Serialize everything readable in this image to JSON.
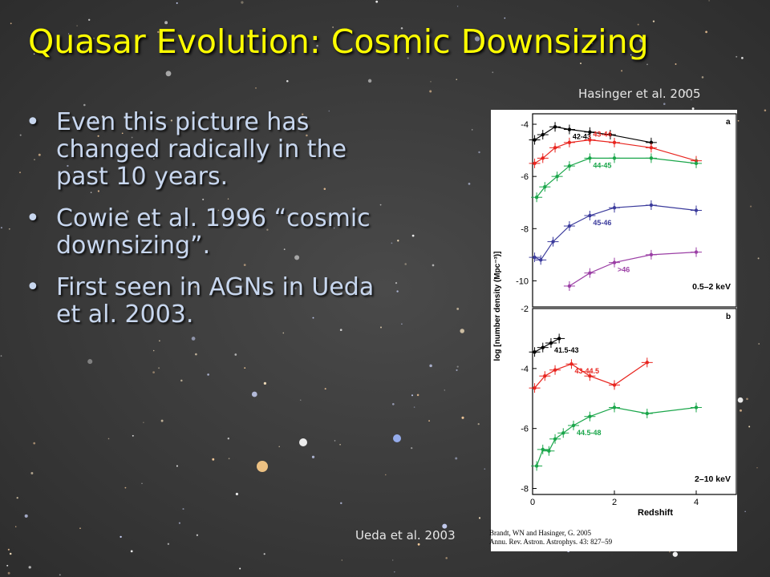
{
  "slide": {
    "title": "Quasar Evolution: Cosmic Downsizing",
    "bullets": [
      "Even this picture has changed radically in the past 10 years.",
      "Cowie et al. 1996 “cosmic downsizing”.",
      "First seen in AGNs in Ueda et al. 2003."
    ],
    "bullet_symbol": "•",
    "credit_top": "Hasinger et al. 2005",
    "credit_bottom": "Ueda et al. 2003",
    "colors": {
      "title": "#ffff00",
      "bullet_text": "#c8d7ef",
      "background": "#3d3d3d"
    }
  },
  "figure": {
    "citation_line1": "Brandt, WN and Hasinger, G. 2005",
    "citation_line2": "Annu. Rev. Astron. Astrophys. 43: 827–59"
  },
  "chart_data": [
    {
      "type": "line",
      "panel": "a",
      "band": "0.5–2 keV",
      "ylabel": "log [number density (Mpc⁻³)]",
      "xlim": [
        0,
        5
      ],
      "ylim": [
        -11,
        -3.6
      ],
      "yticks": [
        -4,
        -6,
        -8,
        -10
      ],
      "series": [
        {
          "name": "42-43",
          "color": "#000000",
          "x": [
            0.05,
            0.25,
            0.55,
            0.9,
            1.4,
            1.9,
            2.9
          ],
          "y": [
            -4.6,
            -4.4,
            -4.1,
            -4.2,
            -4.3,
            -4.4,
            -4.7
          ]
        },
        {
          "name": "43-44",
          "color": "#e8251f",
          "x": [
            0.05,
            0.25,
            0.55,
            0.9,
            1.4,
            2.0,
            2.9,
            4.0
          ],
          "y": [
            -5.5,
            -5.3,
            -4.9,
            -4.7,
            -4.6,
            -4.7,
            -4.9,
            -5.4
          ]
        },
        {
          "name": "44-45",
          "color": "#1aa64a",
          "x": [
            0.1,
            0.3,
            0.6,
            0.9,
            1.4,
            2.0,
            2.9,
            4.0
          ],
          "y": [
            -6.8,
            -6.4,
            -6.0,
            -5.6,
            -5.3,
            -5.3,
            -5.3,
            -5.5
          ]
        },
        {
          "name": "45-46",
          "color": "#3b3b9c",
          "x": [
            0.05,
            0.2,
            0.5,
            0.9,
            1.4,
            2.0,
            2.9,
            4.0
          ],
          "y": [
            -9.1,
            -9.2,
            -8.5,
            -7.9,
            -7.5,
            -7.2,
            -7.1,
            -7.3
          ]
        },
        {
          "name": ">46",
          "color": "#9b3fa5",
          "x": [
            0.9,
            1.4,
            2.0,
            2.9,
            4.0
          ],
          "y": [
            -10.2,
            -9.7,
            -9.3,
            -9.0,
            -8.9
          ]
        }
      ]
    },
    {
      "type": "line",
      "panel": "b",
      "band": "2–10 keV",
      "xlabel": "Redshift",
      "ylabel": "log [number density (Mpc⁻³)]",
      "xlim": [
        0,
        5
      ],
      "ylim": [
        -8.2,
        -2
      ],
      "xticks": [
        0,
        2,
        4
      ],
      "yticks": [
        -2,
        -4,
        -6,
        -8
      ],
      "series": [
        {
          "name": "41.5-43",
          "color": "#000000",
          "x": [
            0.05,
            0.25,
            0.45,
            0.65
          ],
          "y": [
            -3.45,
            -3.3,
            -3.15,
            -3.0
          ]
        },
        {
          "name": "43-44.5",
          "color": "#e8251f",
          "x": [
            0.05,
            0.3,
            0.55,
            0.95,
            1.4,
            2.0,
            2.8
          ],
          "y": [
            -4.65,
            -4.25,
            -4.05,
            -3.85,
            -4.25,
            -4.55,
            -3.8
          ]
        },
        {
          "name": "44.5-48",
          "color": "#1aa64a",
          "x": [
            0.1,
            0.25,
            0.4,
            0.55,
            0.75,
            1.0,
            1.4,
            2.0,
            2.8,
            4.0
          ],
          "y": [
            -7.25,
            -6.7,
            -6.75,
            -6.35,
            -6.15,
            -5.9,
            -5.6,
            -5.3,
            -5.5,
            -5.3
          ]
        }
      ]
    }
  ]
}
